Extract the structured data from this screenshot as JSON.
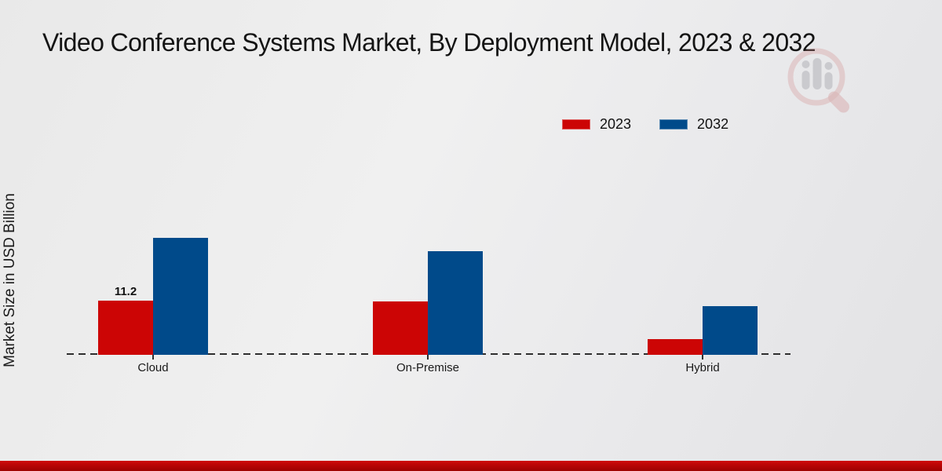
{
  "title": "Video Conference Systems Market, By Deployment Model, 2023 & 2032",
  "legend": [
    {
      "label": "2023",
      "color": "#cc0505"
    },
    {
      "label": "2032",
      "color": "#004a8a"
    }
  ],
  "chart_data": {
    "type": "bar",
    "title": "Video Conference Systems Market, By Deployment Model, 2023 & 2032",
    "categories": [
      "Cloud",
      "On-Premise",
      "Hybrid"
    ],
    "series": [
      {
        "name": "2023",
        "color": "#cc0505",
        "values": [
          11.2,
          11.0,
          3.3
        ]
      },
      {
        "name": "2032",
        "color": "#004a8a",
        "values": [
          24.2,
          21.5,
          10.1
        ]
      }
    ],
    "data_labels": [
      {
        "series_index": 0,
        "category_index": 0,
        "text": "11.2"
      }
    ],
    "xlabel": "",
    "ylabel": "Market Size in USD Billion",
    "ylim": [
      0,
      26
    ],
    "grid": false,
    "legend_position": "top-right",
    "x_axis_style": "dashed-baseline"
  },
  "branding": {
    "accent_red": "#b30404",
    "logo": "magnifier-bar-chart-watermark"
  }
}
